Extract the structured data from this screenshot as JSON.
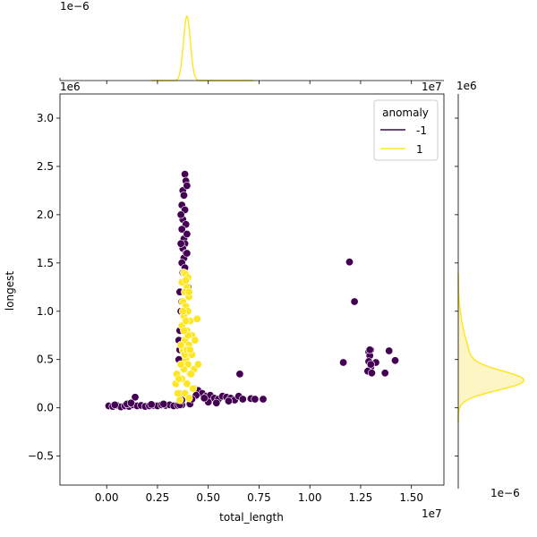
{
  "chart_data": {
    "type": "scatter",
    "xlabel": "total_length",
    "ylabel": "longest",
    "x_offset_label": "1e7",
    "y_offset_label": "1e6",
    "top_marginal_offset_label": "1e−6",
    "right_marginal_offset_label": "1e−6",
    "xlim": [
      -2300000,
      16600000
    ],
    "ylim": [
      -800000,
      3250000
    ],
    "x_ticks": [
      {
        "value": 0,
        "label": "0.00"
      },
      {
        "value": 2500000,
        "label": "0.25"
      },
      {
        "value": 5000000,
        "label": "0.50"
      },
      {
        "value": 7500000,
        "label": "0.75"
      },
      {
        "value": 10000000,
        "label": "1.00"
      },
      {
        "value": 12500000,
        "label": "1.25"
      },
      {
        "value": 15000000,
        "label": "1.50"
      }
    ],
    "y_ticks": [
      {
        "value": -500000,
        "label": "−0.5"
      },
      {
        "value": 0,
        "label": "0.0"
      },
      {
        "value": 500000,
        "label": "0.5"
      },
      {
        "value": 1000000,
        "label": "1.0"
      },
      {
        "value": 1500000,
        "label": "1.5"
      },
      {
        "value": 2000000,
        "label": "2.0"
      },
      {
        "value": 2500000,
        "label": "2.5"
      },
      {
        "value": 3000000,
        "label": "3.0"
      }
    ],
    "legend": {
      "title": "anomaly",
      "placement": "top-right",
      "entries": [
        {
          "label": "-1",
          "color": "#440154"
        },
        {
          "label": "1",
          "color": "#fde725"
        }
      ]
    },
    "series": [
      {
        "name": "-1",
        "color": "#440154",
        "points": [
          [
            100000,
            20000
          ],
          [
            300000,
            15000
          ],
          [
            500000,
            25000
          ],
          [
            700000,
            10000
          ],
          [
            900000,
            20000
          ],
          [
            1100000,
            15000
          ],
          [
            1300000,
            30000
          ],
          [
            1500000,
            20000
          ],
          [
            1700000,
            25000
          ],
          [
            1900000,
            15000
          ],
          [
            2100000,
            20000
          ],
          [
            2300000,
            25000
          ],
          [
            2500000,
            20000
          ],
          [
            2700000,
            30000
          ],
          [
            2900000,
            25000
          ],
          [
            3100000,
            30000
          ],
          [
            3300000,
            20000
          ],
          [
            3500000,
            25000
          ],
          [
            3700000,
            30000
          ],
          [
            400000,
            30000
          ],
          [
            1000000,
            40000
          ],
          [
            1400000,
            110000
          ],
          [
            1200000,
            50000
          ],
          [
            2200000,
            35000
          ],
          [
            2800000,
            40000
          ],
          [
            3600000,
            30000
          ],
          [
            4100000,
            40000
          ],
          [
            3850000,
            2420000
          ],
          [
            3900000,
            2350000
          ],
          [
            3750000,
            2250000
          ],
          [
            3800000,
            2200000
          ],
          [
            3700000,
            2100000
          ],
          [
            3850000,
            2050000
          ],
          [
            3750000,
            1950000
          ],
          [
            3900000,
            1900000
          ],
          [
            3700000,
            1850000
          ],
          [
            3800000,
            1750000
          ],
          [
            3850000,
            1700000
          ],
          [
            3750000,
            1650000
          ],
          [
            3900000,
            1600000
          ],
          [
            3800000,
            1550000
          ],
          [
            3700000,
            1500000
          ],
          [
            3850000,
            1450000
          ],
          [
            3750000,
            1400000
          ],
          [
            3950000,
            2300000
          ],
          [
            3650000,
            2000000
          ],
          [
            3950000,
            1800000
          ],
          [
            3650000,
            1700000
          ],
          [
            3950000,
            1600000
          ],
          [
            3600000,
            1200000
          ],
          [
            3700000,
            1100000
          ],
          [
            4000000,
            1250000
          ],
          [
            3650000,
            1000000
          ],
          [
            3800000,
            950000
          ],
          [
            3600000,
            800000
          ],
          [
            3550000,
            700000
          ],
          [
            3600000,
            600000
          ],
          [
            3550000,
            500000
          ],
          [
            3600000,
            300000
          ],
          [
            3550000,
            150000
          ],
          [
            3700000,
            80000
          ],
          [
            4300000,
            200000
          ],
          [
            4500000,
            180000
          ],
          [
            4700000,
            150000
          ],
          [
            4900000,
            120000
          ],
          [
            5100000,
            130000
          ],
          [
            5300000,
            100000
          ],
          [
            5500000,
            90000
          ],
          [
            5700000,
            120000
          ],
          [
            5900000,
            110000
          ],
          [
            6100000,
            100000
          ],
          [
            6300000,
            80000
          ],
          [
            6500000,
            120000
          ],
          [
            6700000,
            90000
          ],
          [
            7100000,
            95000
          ],
          [
            7300000,
            90000
          ],
          [
            7700000,
            90000
          ],
          [
            6550000,
            350000
          ],
          [
            5000000,
            60000
          ],
          [
            5400000,
            50000
          ],
          [
            6000000,
            70000
          ],
          [
            4800000,
            100000
          ],
          [
            4400000,
            130000
          ],
          [
            4200000,
            90000
          ],
          [
            11950000,
            1510000
          ],
          [
            12200000,
            1100000
          ],
          [
            11650000,
            470000
          ],
          [
            12900000,
            580000
          ],
          [
            13000000,
            600000
          ],
          [
            12950000,
            540000
          ],
          [
            12900000,
            480000
          ],
          [
            13000000,
            420000
          ],
          [
            12850000,
            380000
          ],
          [
            13050000,
            360000
          ],
          [
            13250000,
            470000
          ],
          [
            13700000,
            360000
          ],
          [
            13900000,
            590000
          ],
          [
            14200000,
            490000
          ],
          [
            12950000,
            600000
          ],
          [
            13000000,
            450000
          ]
        ]
      },
      {
        "name": "1",
        "color": "#fde725",
        "points": [
          [
            3800000,
            1400000
          ],
          [
            3900000,
            1380000
          ],
          [
            4000000,
            1350000
          ],
          [
            3700000,
            1300000
          ],
          [
            3950000,
            1250000
          ],
          [
            3850000,
            1200000
          ],
          [
            4050000,
            1150000
          ],
          [
            3750000,
            1100000
          ],
          [
            3900000,
            1050000
          ],
          [
            4000000,
            1000000
          ],
          [
            3800000,
            950000
          ],
          [
            4100000,
            900000
          ],
          [
            3700000,
            850000
          ],
          [
            3950000,
            800000
          ],
          [
            4200000,
            750000
          ],
          [
            3850000,
            700000
          ],
          [
            4050000,
            650000
          ],
          [
            3750000,
            600000
          ],
          [
            4150000,
            550000
          ],
          [
            3900000,
            500000
          ],
          [
            4000000,
            450000
          ],
          [
            3800000,
            400000
          ],
          [
            4100000,
            350000
          ],
          [
            3700000,
            300000
          ],
          [
            3950000,
            250000
          ],
          [
            4250000,
            200000
          ],
          [
            3850000,
            150000
          ],
          [
            4050000,
            100000
          ],
          [
            3600000,
            80000
          ],
          [
            3500000,
            150000
          ],
          [
            3400000,
            250000
          ],
          [
            3450000,
            350000
          ],
          [
            4300000,
            400000
          ],
          [
            4350000,
            700000
          ],
          [
            4450000,
            920000
          ],
          [
            4500000,
            450000
          ],
          [
            3650000,
            450000
          ],
          [
            3650000,
            650000
          ],
          [
            3750000,
            1000000
          ],
          [
            4050000,
            1200000
          ],
          [
            3900000,
            1320000
          ],
          [
            3550000,
            300000
          ],
          [
            4200000,
            550000
          ],
          [
            4150000,
            350000
          ],
          [
            3850000,
            550000
          ],
          [
            3950000,
            600000
          ],
          [
            4000000,
            750000
          ],
          [
            3800000,
            800000
          ],
          [
            4100000,
            600000
          ],
          [
            3900000,
            900000
          ]
        ]
      }
    ],
    "marginal_top": {
      "type": "kde",
      "color": "#fde725",
      "peak_x": 3950000,
      "sigma": 170000
    },
    "marginal_right": {
      "type": "kde",
      "color": "#fde725",
      "fill": "#fdf5c4",
      "peak_y": 280000,
      "sigma": 100000
    }
  }
}
